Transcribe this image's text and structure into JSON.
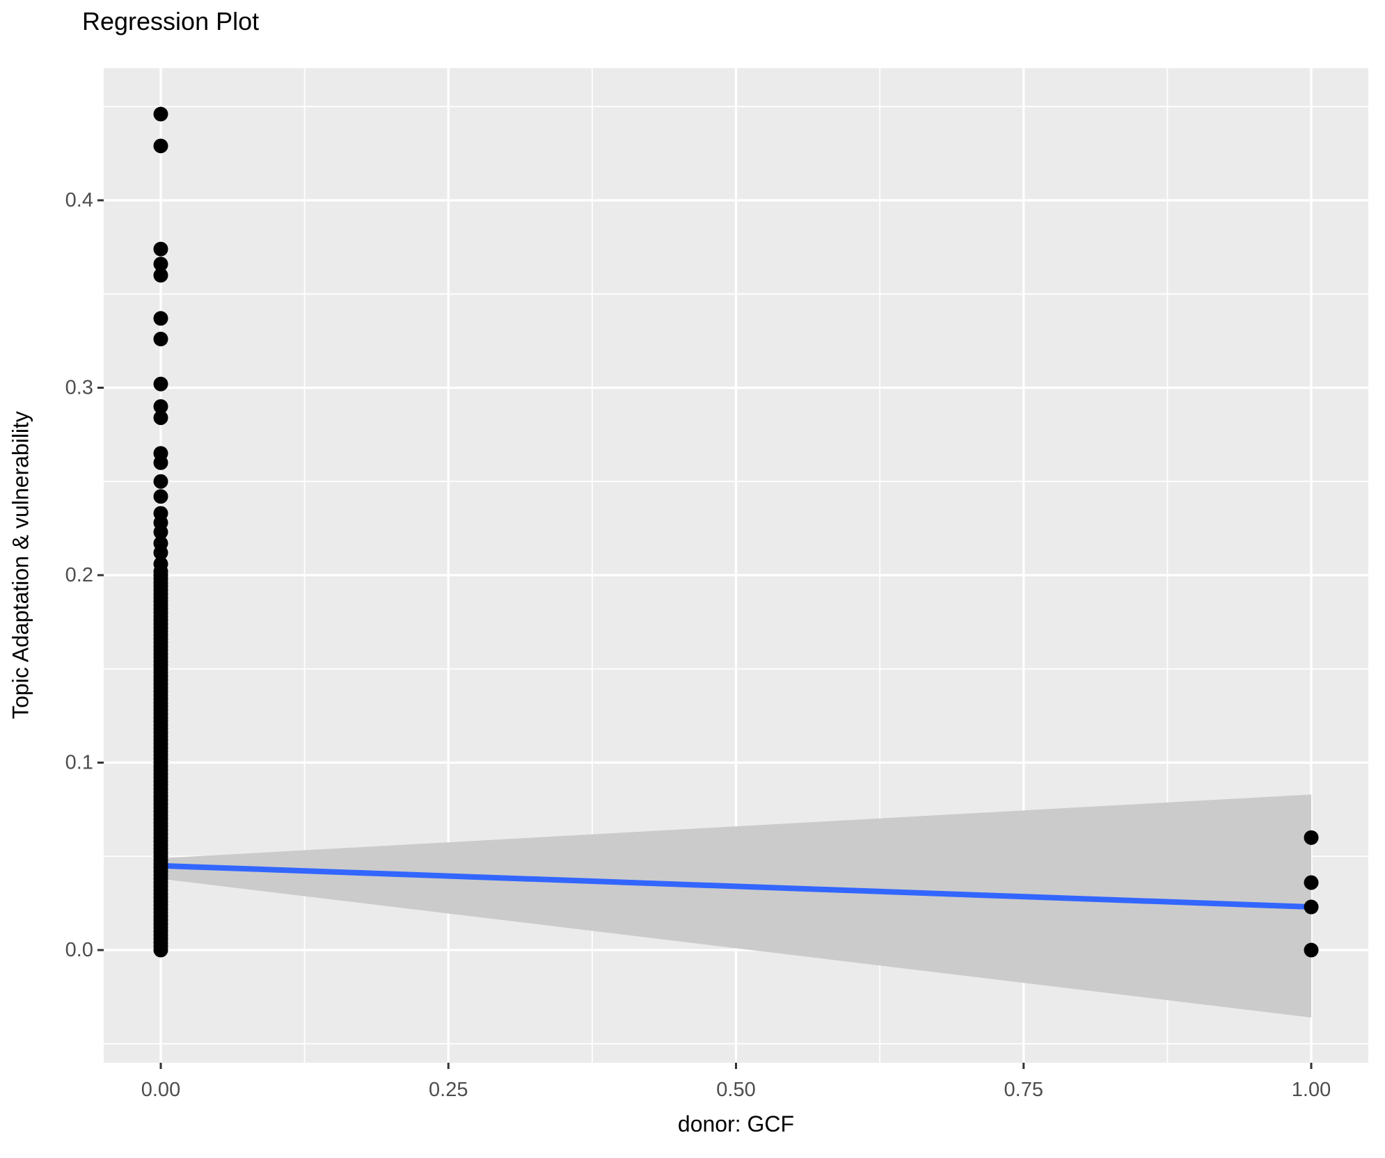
{
  "colors": {
    "panel_bg": "#EBEBEB",
    "grid": "#FFFFFF",
    "point": "#000000",
    "regression_line": "#3366FF",
    "confidence_band": "#CBCBCB",
    "tick_text": "#4D4D4D",
    "tick_mark": "#333333",
    "title_text": "#000000"
  },
  "chart_data": {
    "type": "scatter",
    "title": "Regression Plot",
    "xlabel": "donor: GCF",
    "ylabel": "Topic Adaptation & vulnerability",
    "xlim": [
      -0.0496,
      1.0496
    ],
    "ylim": [
      -0.0601,
      0.4705
    ],
    "grid": true,
    "legend": false,
    "x_ticks": [
      {
        "value": 0.0,
        "label": "0.00"
      },
      {
        "value": 0.25,
        "label": "0.25"
      },
      {
        "value": 0.5,
        "label": "0.50"
      },
      {
        "value": 0.75,
        "label": "0.75"
      },
      {
        "value": 1.0,
        "label": "1.00"
      }
    ],
    "y_ticks": [
      {
        "value": 0.0,
        "label": "0.0"
      },
      {
        "value": 0.1,
        "label": "0.1"
      },
      {
        "value": 0.2,
        "label": "0.2"
      },
      {
        "value": 0.3,
        "label": "0.3"
      },
      {
        "value": 0.4,
        "label": "0.4"
      }
    ],
    "x_minor": [
      0.125,
      0.375,
      0.625,
      0.875
    ],
    "y_minor": [
      -0.05,
      0.05,
      0.15,
      0.25,
      0.35,
      0.45
    ],
    "series": [
      {
        "name": "donor GCF = 0",
        "x": 0,
        "y": [
          0.446,
          0.429,
          0.374,
          0.366,
          0.36,
          0.337,
          0.326,
          0.302,
          0.29,
          0.284,
          0.265,
          0.26,
          0.25,
          0.242,
          0.233,
          0.228,
          0.223,
          0.217,
          0.212,
          0.206,
          0.202,
          0.2,
          0.198,
          0.196,
          0.194,
          0.192,
          0.19,
          0.188,
          0.186,
          0.184,
          0.182,
          0.18,
          0.178,
          0.176,
          0.174,
          0.172,
          0.17,
          0.168,
          0.166,
          0.164,
          0.162,
          0.16,
          0.158,
          0.156,
          0.154,
          0.152,
          0.15,
          0.148,
          0.146,
          0.144,
          0.142,
          0.14,
          0.138,
          0.136,
          0.134,
          0.132,
          0.13,
          0.128,
          0.126,
          0.124,
          0.122,
          0.12,
          0.118,
          0.116,
          0.114,
          0.112,
          0.11,
          0.108,
          0.106,
          0.104,
          0.102,
          0.1,
          0.098,
          0.096,
          0.094,
          0.092,
          0.09,
          0.088,
          0.086,
          0.084,
          0.082,
          0.08,
          0.078,
          0.076,
          0.074,
          0.072,
          0.07,
          0.068,
          0.066,
          0.064,
          0.062,
          0.06,
          0.058,
          0.056,
          0.054,
          0.052,
          0.05,
          0.048,
          0.046,
          0.044,
          0.042,
          0.04,
          0.038,
          0.036,
          0.034,
          0.032,
          0.03,
          0.028,
          0.026,
          0.024,
          0.022,
          0.02,
          0.018,
          0.016,
          0.014,
          0.012,
          0.01,
          0.008,
          0.006,
          0.004,
          0.002,
          0.0
        ]
      },
      {
        "name": "donor GCF = 1",
        "x": 1,
        "y": [
          0.06,
          0.036,
          0.023,
          0.0
        ]
      }
    ],
    "regression_line": {
      "x": [
        0,
        1
      ],
      "y": [
        0.045,
        0.023
      ]
    },
    "confidence_band": {
      "x": [
        0,
        1
      ],
      "upper": [
        0.049,
        0.083
      ],
      "lower": [
        0.038,
        -0.036
      ]
    }
  }
}
